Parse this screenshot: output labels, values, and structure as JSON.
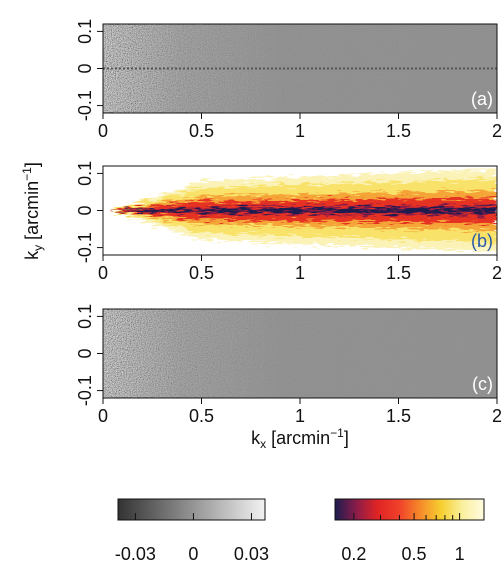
{
  "chart_data": {
    "type": "heatmap-panels",
    "panels": [
      {
        "label": "(a)",
        "label_color": "#ffffff",
        "xlim": [
          0,
          2
        ],
        "xticks": [
          0,
          0.5,
          1,
          1.5,
          2
        ],
        "ylim": [
          -0.12,
          0.12
        ],
        "yticks": [
          -0.1,
          0,
          0.1
        ],
        "colorbar": 0
      },
      {
        "label": "(b)",
        "label_color": "#2a5aa8",
        "xlim": [
          0,
          2
        ],
        "xticks": [
          0,
          0.5,
          1,
          1.5,
          2
        ],
        "ylim": [
          -0.12,
          0.12
        ],
        "yticks": [
          -0.1,
          0,
          0.1
        ],
        "colorbar": 1
      },
      {
        "label": "(c)",
        "label_color": "#ffffff",
        "xlim": [
          0,
          2
        ],
        "xticks": [
          0,
          0.5,
          1,
          1.5,
          2
        ],
        "ylim": [
          -0.12,
          0.12
        ],
        "yticks": [
          -0.1,
          0,
          0.1
        ],
        "colorbar": 0
      }
    ],
    "xlabel": [
      "k",
      "x",
      " [arcmin",
      "−1",
      "]"
    ],
    "ylabel": [
      "k",
      "y",
      " [arcmin",
      "−1",
      "]"
    ],
    "colorbars": [
      {
        "xlim": [
          -0.039,
          0.037
        ],
        "xticks": [
          -0.03,
          0,
          0.03
        ],
        "colors": [
          "#333333",
          "#f2f2f2"
        ]
      },
      {
        "xscale": "log",
        "xlim": [
          0.15,
          1.45
        ],
        "xticks": [
          0.2,
          0.5,
          1
        ],
        "minor_ticks": [
          0.3,
          0.4,
          0.6,
          0.7,
          0.8,
          0.9
        ],
        "colors": [
          "#1c1c4e",
          "#8a1c4a",
          "#e02424",
          "#f0402a",
          "#f58a2a",
          "#f7d030",
          "#faf0a0",
          "#fffbe0"
        ]
      }
    ]
  }
}
